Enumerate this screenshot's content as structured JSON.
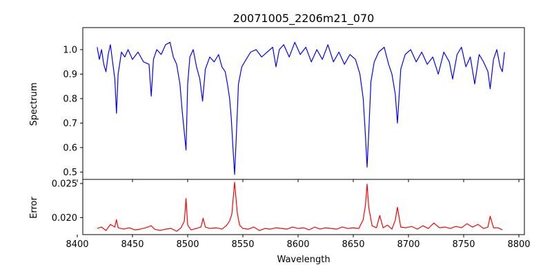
{
  "figure": {
    "title": "20071005_2206m21_070"
  },
  "chart_data": [
    {
      "type": "line",
      "panel": "top",
      "title": "20071005_2206m21_070",
      "xlabel": "",
      "ylabel": "Spectrum",
      "xlim": [
        8405,
        8805
      ],
      "ylim": [
        0.47,
        1.09
      ],
      "x_ticks": [
        8400,
        8450,
        8500,
        8550,
        8600,
        8650,
        8700,
        8750,
        8800
      ],
      "y_ticks": [
        0.5,
        0.6,
        0.7,
        0.8,
        0.9,
        1.0
      ],
      "y_tick_labels": [
        "0.5",
        "0.6",
        "0.7",
        "0.8",
        "0.9",
        "1.0"
      ],
      "show_x_tick_labels": false,
      "grid": false,
      "color": "#0000ff",
      "series": [
        {
          "x": [
            8418,
            8420,
            8422,
            8424,
            8426,
            8428,
            8430,
            8432,
            8434,
            8435.5,
            8437,
            8440,
            8443,
            8446,
            8450,
            8455,
            8460,
            8465,
            8467,
            8469,
            8472,
            8476,
            8480,
            8484,
            8487,
            8490,
            8493,
            8495,
            8497,
            8498.5,
            8500,
            8502,
            8505,
            8508,
            8511,
            8513.5,
            8516,
            8520,
            8524,
            8528,
            8531,
            8534,
            8536,
            8538,
            8539.5,
            8541,
            8542.5,
            8544,
            8546,
            8549,
            8553,
            8557,
            8562,
            8567,
            8572,
            8577,
            8580,
            8583,
            8587,
            8592,
            8597,
            8602,
            8607,
            8612,
            8617,
            8622,
            8627,
            8632,
            8637,
            8642,
            8647,
            8652,
            8656,
            8659,
            8661,
            8662.5,
            8664,
            8666,
            8669,
            8673,
            8678,
            8682,
            8685,
            8688,
            8690,
            8693,
            8697,
            8702,
            8707,
            8712,
            8717,
            8722,
            8727,
            8732,
            8737,
            8740,
            8744,
            8748,
            8752,
            8756,
            8760,
            8764,
            8768,
            8772,
            8774,
            8777,
            8780,
            8783,
            8785,
            8787
          ],
          "values": [
            1.01,
            0.96,
            1.0,
            0.94,
            0.91,
            0.98,
            1.02,
            0.95,
            0.88,
            0.74,
            0.9,
            0.99,
            0.97,
            1.0,
            0.96,
            0.99,
            0.95,
            0.94,
            0.81,
            0.96,
            1.0,
            0.98,
            1.02,
            1.03,
            0.97,
            0.94,
            0.86,
            0.75,
            0.66,
            0.59,
            0.86,
            0.97,
            1.0,
            0.93,
            0.88,
            0.79,
            0.92,
            0.97,
            0.95,
            0.98,
            0.93,
            0.91,
            0.86,
            0.8,
            0.72,
            0.6,
            0.49,
            0.64,
            0.86,
            0.93,
            0.96,
            0.99,
            1.0,
            0.97,
            0.99,
            1.01,
            0.93,
            1.0,
            1.02,
            0.97,
            1.03,
            0.98,
            1.01,
            0.95,
            1.0,
            0.96,
            1.02,
            0.95,
            0.99,
            0.94,
            0.98,
            0.96,
            0.9,
            0.8,
            0.65,
            0.52,
            0.66,
            0.87,
            0.95,
            0.99,
            1.01,
            0.94,
            0.9,
            0.82,
            0.7,
            0.92,
            0.98,
            1.0,
            0.95,
            0.99,
            0.94,
            0.97,
            0.9,
            0.99,
            0.95,
            0.88,
            0.98,
            1.01,
            0.93,
            0.97,
            0.86,
            0.98,
            0.95,
            0.91,
            0.84,
            0.96,
            1.0,
            0.93,
            0.91,
            0.99
          ]
        }
      ]
    },
    {
      "type": "line",
      "panel": "bottom",
      "title": "",
      "xlabel": "Wavelength",
      "ylabel": "Error",
      "xlim": [
        8405,
        8805
      ],
      "ylim": [
        0.0175,
        0.0256
      ],
      "x_ticks": [
        8400,
        8450,
        8500,
        8550,
        8600,
        8650,
        8700,
        8750,
        8800
      ],
      "x_tick_labels": [
        "8400",
        "8450",
        "8500",
        "8550",
        "8600",
        "8650",
        "8700",
        "8750",
        "8800"
      ],
      "y_ticks": [
        0.02,
        0.025
      ],
      "y_tick_labels": [
        "0.020",
        "0.025"
      ],
      "grid": false,
      "color": "#ff0000",
      "series": [
        {
          "x": [
            8418,
            8422,
            8426,
            8430,
            8434,
            8435.5,
            8437,
            8442,
            8447,
            8452,
            8457,
            8462,
            8467,
            8470,
            8475,
            8480,
            8485,
            8490,
            8494,
            8497,
            8498.5,
            8500,
            8503,
            8508,
            8512,
            8514,
            8516,
            8520,
            8526,
            8531,
            8535,
            8538,
            8540,
            8542.5,
            8545,
            8547,
            8550,
            8555,
            8560,
            8565,
            8570,
            8575,
            8580,
            8585,
            8590,
            8595,
            8600,
            8605,
            8610,
            8615,
            8620,
            8625,
            8630,
            8635,
            8640,
            8645,
            8650,
            8655,
            8659,
            8661,
            8662.5,
            8664,
            8667,
            8671,
            8674,
            8677,
            8681,
            8685,
            8688,
            8690,
            8693,
            8698,
            8703,
            8708,
            8713,
            8718,
            8723,
            8728,
            8733,
            8738,
            8743,
            8748,
            8753,
            8758,
            8763,
            8768,
            8772,
            8774,
            8777,
            8781,
            8785
          ],
          "values": [
            0.0184,
            0.0186,
            0.0181,
            0.019,
            0.0186,
            0.0197,
            0.0185,
            0.0183,
            0.0185,
            0.0182,
            0.0183,
            0.0185,
            0.0188,
            0.0183,
            0.0181,
            0.0183,
            0.0184,
            0.018,
            0.0185,
            0.0195,
            0.0228,
            0.0189,
            0.0182,
            0.0184,
            0.0186,
            0.0199,
            0.0186,
            0.0184,
            0.0185,
            0.0183,
            0.0188,
            0.0195,
            0.0205,
            0.0252,
            0.0206,
            0.0189,
            0.0184,
            0.0183,
            0.0186,
            0.0181,
            0.0184,
            0.0183,
            0.0185,
            0.0184,
            0.0183,
            0.0186,
            0.0184,
            0.0185,
            0.0182,
            0.0186,
            0.0183,
            0.0185,
            0.0184,
            0.0183,
            0.0186,
            0.0184,
            0.0185,
            0.0184,
            0.0197,
            0.0218,
            0.0249,
            0.0215,
            0.0188,
            0.0185,
            0.0203,
            0.0185,
            0.0189,
            0.0183,
            0.0196,
            0.0215,
            0.0186,
            0.0185,
            0.0187,
            0.0183,
            0.0188,
            0.0184,
            0.0192,
            0.0185,
            0.0186,
            0.0184,
            0.0187,
            0.0185,
            0.0191,
            0.0186,
            0.019,
            0.0184,
            0.0186,
            0.0202,
            0.0185,
            0.0185,
            0.0182
          ]
        }
      ]
    }
  ]
}
